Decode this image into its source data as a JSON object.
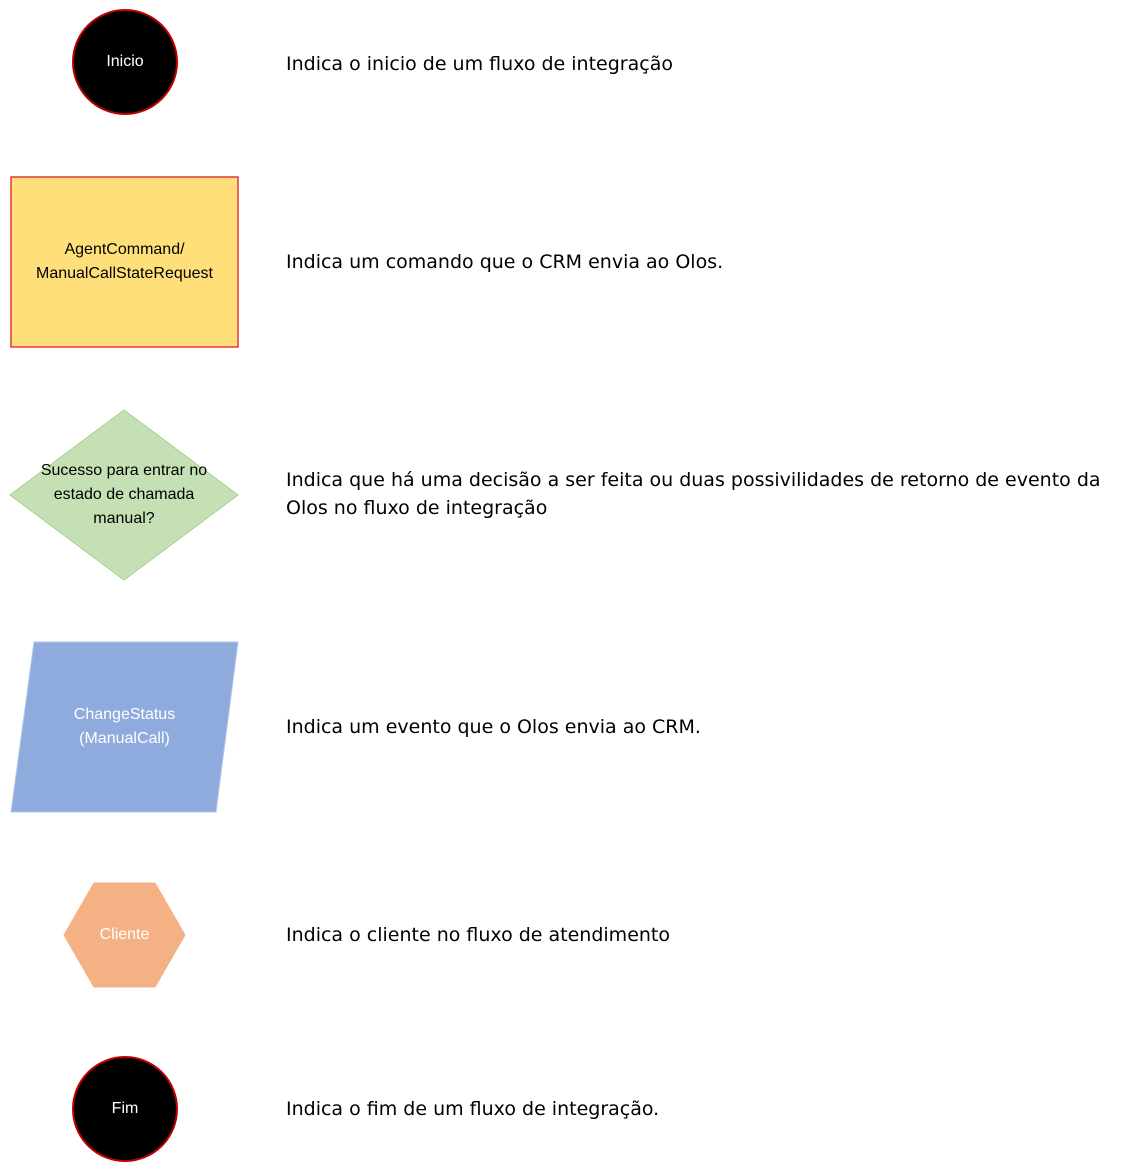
{
  "legend": [
    {
      "shape": "circle",
      "label": "Inicio",
      "description": "Indica o inicio de um fluxo de integração",
      "fill": "#000000",
      "stroke": "#c00000",
      "text_color": "#ffffff"
    },
    {
      "shape": "rectangle",
      "label": "AgentCommand/\nManualCallStateRequest",
      "description": "Indica um comando que o CRM envia ao Olos.",
      "fill": "#ffdf79",
      "stroke": "#e0373b",
      "text_color": "#000000"
    },
    {
      "shape": "diamond",
      "label": "Sucesso para entrar no\nestado de chamada\nmanual?",
      "description": "Indica que há uma decisão a ser feita ou duas possivilidades de retorno de evento da Olos no fluxo de integração",
      "fill": "#c5e0b4",
      "stroke": "#a9d18e",
      "text_color": "#000000"
    },
    {
      "shape": "parallelogram",
      "label": "ChangeStatus\n(ManualCall)",
      "description": "Indica um evento que o Olos envia ao CRM.",
      "fill": "#8faadc",
      "stroke": "#b4c7e7",
      "text_color": "#ffffff"
    },
    {
      "shape": "hexagon",
      "label": "Cliente",
      "description": "Indica o cliente no fluxo de atendimento",
      "fill": "#f4b183",
      "stroke": "#f4b183",
      "text_color": "#ffffff"
    },
    {
      "shape": "circle",
      "label": "Fim",
      "description": "Indica o fim de um fluxo de integração.",
      "fill": "#000000",
      "stroke": "#c00000",
      "text_color": "#ffffff"
    }
  ]
}
